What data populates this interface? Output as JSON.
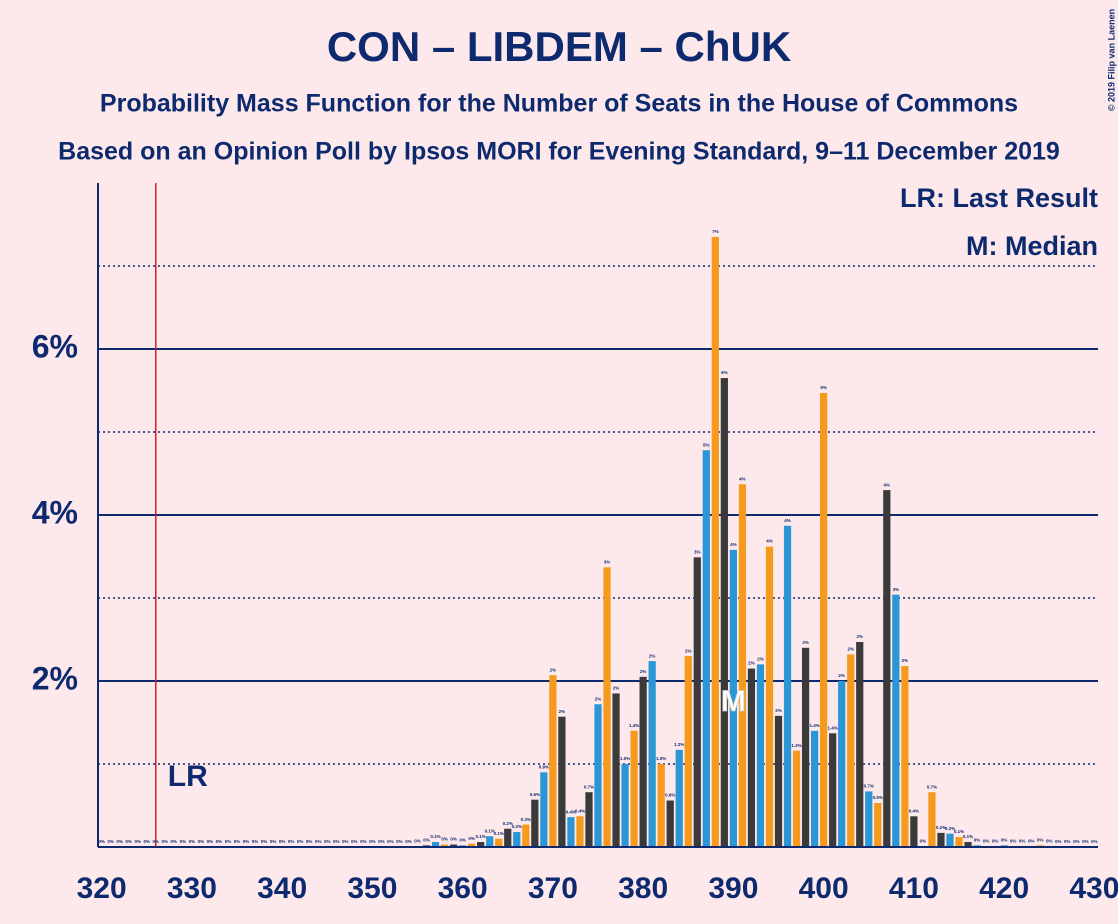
{
  "chart_data": {
    "type": "bar",
    "title": "CON – LIBDEM – ChUK",
    "subtitle": "Probability Mass Function for the Number of Seats in the House of Commons",
    "subtitle2": "Based on an Opinion Poll by Ipsos MORI for Evening Standard, 9–11 December 2019",
    "copyright": "© 2019 Filip van Laenen",
    "legend_lr": "LR: Last Result",
    "legend_m": "M: Median",
    "last_result": 326,
    "last_result_label": "LR",
    "median": 390,
    "median_label": "M",
    "bar_colors": [
      "#3a3a3a",
      "#2a96d6",
      "#f59a1c"
    ],
    "x": [
      320,
      321,
      322,
      323,
      324,
      325,
      326,
      327,
      328,
      329,
      330,
      331,
      332,
      333,
      334,
      335,
      336,
      337,
      338,
      339,
      340,
      341,
      342,
      343,
      344,
      345,
      346,
      347,
      348,
      349,
      350,
      351,
      352,
      353,
      354,
      355,
      356,
      357,
      358,
      359,
      360,
      361,
      362,
      363,
      364,
      365,
      366,
      367,
      368,
      369,
      370,
      371,
      372,
      373,
      374,
      375,
      376,
      377,
      378,
      379,
      380,
      381,
      382,
      383,
      384,
      385,
      386,
      387,
      388,
      389,
      390,
      391,
      392,
      393,
      394,
      395,
      396,
      397,
      398,
      399,
      400,
      401,
      402,
      403,
      404,
      405,
      406,
      407,
      408,
      409,
      410,
      411,
      412,
      413,
      414,
      415,
      416,
      417,
      418,
      419,
      420,
      421,
      422,
      423,
      424,
      425,
      426,
      427,
      428,
      429,
      430
    ],
    "values": [
      0,
      0,
      0,
      0,
      0,
      0,
      0,
      0,
      0,
      0,
      0,
      0,
      0,
      0,
      0,
      0,
      0,
      0,
      0,
      0,
      0,
      0,
      0,
      0,
      0,
      0,
      0,
      0,
      0,
      0,
      0,
      0,
      0,
      0,
      0,
      0.01,
      0.02,
      0.06,
      0.03,
      0.03,
      0.02,
      0.04,
      0.06,
      0.13,
      0.1,
      0.22,
      0.18,
      0.27,
      0.57,
      0.9,
      2.07,
      1.57,
      0.36,
      0.37,
      0.66,
      1.72,
      3.37,
      1.85,
      1.0,
      1.4,
      2.05,
      2.24,
      1.0,
      0.56,
      1.17,
      2.3,
      3.49,
      4.78,
      7.35,
      5.65,
      3.58,
      4.37,
      2.15,
      2.2,
      3.62,
      1.58,
      3.87,
      1.16,
      2.4,
      1.4,
      5.47,
      1.37,
      2.0,
      2.32,
      2.47,
      0.67,
      0.53,
      4.3,
      3.04,
      2.18,
      0.37,
      0.01,
      0.66,
      0.17,
      0.16,
      0.12,
      0.06,
      0.02,
      0.01,
      0.01,
      0.02,
      0.01,
      0.01,
      0.01,
      0.02,
      0.01,
      0,
      0,
      0,
      0,
      0
    ],
    "value_labels": [
      "0%",
      "0%",
      "0%",
      "0%",
      "0%",
      "0%",
      "0%",
      "0%",
      "0%",
      "0%",
      "0%",
      "0%",
      "0%",
      "0%",
      "0%",
      "0%",
      "0%",
      "0%",
      "0%",
      "0%",
      "0%",
      "0%",
      "0%",
      "0%",
      "0%",
      "0%",
      "0%",
      "0%",
      "0%",
      "0%",
      "0%",
      "0%",
      "0%",
      "0%",
      "0%",
      "0%",
      "0%",
      "0.1%",
      "0%",
      "0%",
      "0%",
      "0%",
      "0.1%",
      "0.1%",
      "0.1%",
      "0.2%",
      "0.2%",
      "0.3%",
      "0.6%",
      "0.9%",
      "2%",
      "2%",
      "0.4%",
      "0.4%",
      "0.7%",
      "2%",
      "3%",
      "2%",
      "1.0%",
      "1.4%",
      "2%",
      "2%",
      "1.0%",
      "0.6%",
      "1.2%",
      "2%",
      "3%",
      "5%",
      "7%",
      "6%",
      "4%",
      "4%",
      "2%",
      "2%",
      "4%",
      "2%",
      "4%",
      "1.2%",
      "2%",
      "1.4%",
      "5%",
      "1.4%",
      "2%",
      "2%",
      "2%",
      "0.7%",
      "0.5%",
      "4%",
      "3%",
      "2%",
      "0.4%",
      "0%",
      "0.7%",
      "0.2%",
      "0.2%",
      "0.1%",
      "0.1%",
      "0%",
      "0%",
      "0%",
      "0%",
      "0%",
      "0%",
      "0%",
      "0%",
      "0%",
      "0%",
      "0%",
      "0%",
      "0%",
      "0%"
    ],
    "xlim": [
      319.6,
      430.4
    ],
    "xticks": [
      320,
      330,
      340,
      350,
      360,
      370,
      380,
      390,
      400,
      410,
      420,
      430
    ],
    "ylim": [
      0,
      8
    ],
    "yticks": [
      {
        "value": 2,
        "label": "2%"
      },
      {
        "value": 4,
        "label": "4%"
      },
      {
        "value": 6,
        "label": "6%"
      }
    ],
    "minor_yticks": [
      1,
      3,
      5,
      7
    ],
    "grid": true
  }
}
